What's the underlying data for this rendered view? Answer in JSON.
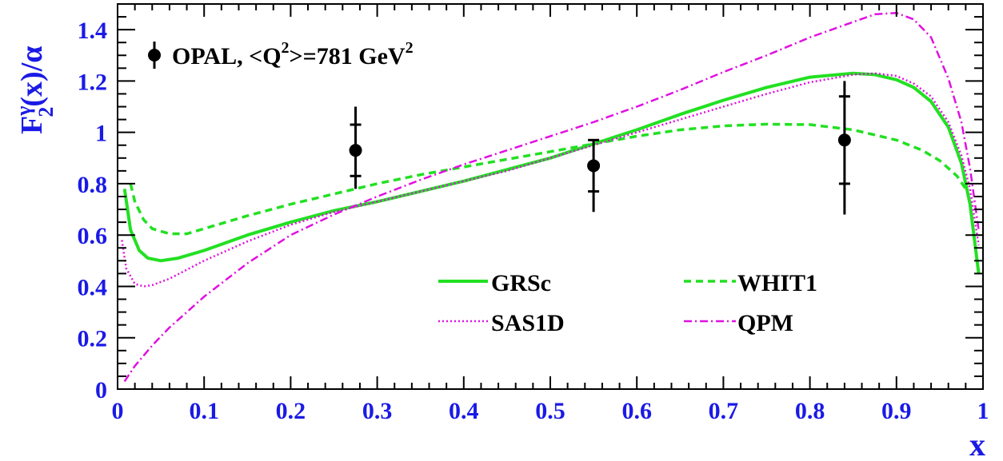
{
  "colors": {
    "axis": "#000000",
    "tick_label": "#1a1ae6",
    "data_points": "#000000",
    "grsc": "#22e022",
    "whit1": "#22e022",
    "sas1d": "#e010e0",
    "qpm": "#e010e0"
  },
  "chart_data": {
    "type": "line",
    "title": "",
    "xlabel": "x",
    "ylabel": "F2γ(x)/α",
    "ylabel_parts": {
      "main": "F",
      "sub": "2",
      "sup": "γ",
      "rest": "(x)/α"
    },
    "xlim": [
      0,
      1
    ],
    "ylim": [
      0,
      1.5
    ],
    "grid": false,
    "legend_placement": "bottom-right",
    "x_ticks": [
      0,
      0.1,
      0.2,
      0.3,
      0.4,
      0.5,
      0.6,
      0.7,
      0.8,
      0.9,
      1
    ],
    "x_tick_labels": [
      "0",
      "0.1",
      "0.2",
      "0.3",
      "0.4",
      "0.5",
      "0.6",
      "0.7",
      "0.8",
      "0.9",
      "1"
    ],
    "y_ticks": [
      0,
      0.2,
      0.4,
      0.6,
      0.8,
      1,
      1.2,
      1.4
    ],
    "y_tick_labels": [
      "0",
      "0.2",
      "0.4",
      "0.6",
      "0.8",
      "1",
      "1.2",
      "1.4"
    ],
    "data_series": {
      "label_prefix": "OPAL, <Q",
      "label_sup": "2",
      "label_mid": ">=781 GeV",
      "label_sup2": "2",
      "points": [
        {
          "x": 0.275,
          "y": 0.93,
          "stat_lo": 0.83,
          "stat_hi": 1.03,
          "tot_lo": 0.78,
          "tot_hi": 1.1
        },
        {
          "x": 0.55,
          "y": 0.87,
          "stat_lo": 0.77,
          "stat_hi": 0.97,
          "tot_lo": 0.69,
          "tot_hi": 0.97
        },
        {
          "x": 0.84,
          "y": 0.97,
          "stat_lo": 0.8,
          "stat_hi": 1.14,
          "tot_lo": 0.68,
          "tot_hi": 1.2
        }
      ]
    },
    "series": [
      {
        "name": "GRSc",
        "style": "solid",
        "x": [
          0.008,
          0.015,
          0.025,
          0.035,
          0.05,
          0.07,
          0.1,
          0.15,
          0.2,
          0.25,
          0.3,
          0.35,
          0.4,
          0.45,
          0.5,
          0.55,
          0.6,
          0.65,
          0.7,
          0.75,
          0.8,
          0.85,
          0.875,
          0.9,
          0.92,
          0.94,
          0.96,
          0.975,
          0.985,
          0.995
        ],
        "y": [
          0.78,
          0.62,
          0.54,
          0.51,
          0.5,
          0.51,
          0.54,
          0.6,
          0.65,
          0.695,
          0.73,
          0.77,
          0.81,
          0.855,
          0.9,
          0.955,
          1.01,
          1.07,
          1.125,
          1.175,
          1.215,
          1.23,
          1.225,
          1.205,
          1.175,
          1.12,
          1.02,
          0.88,
          0.72,
          0.45
        ]
      },
      {
        "name": "WHIT1",
        "style": "dashed",
        "x": [
          0.015,
          0.02,
          0.03,
          0.04,
          0.06,
          0.08,
          0.1,
          0.15,
          0.2,
          0.25,
          0.3,
          0.35,
          0.4,
          0.45,
          0.5,
          0.55,
          0.6,
          0.65,
          0.7,
          0.75,
          0.8,
          0.85,
          0.9,
          0.93,
          0.95,
          0.97,
          0.98
        ],
        "y": [
          0.8,
          0.73,
          0.66,
          0.625,
          0.605,
          0.605,
          0.625,
          0.675,
          0.72,
          0.76,
          0.8,
          0.835,
          0.865,
          0.895,
          0.925,
          0.955,
          0.985,
          1.01,
          1.025,
          1.032,
          1.03,
          1.01,
          0.97,
          0.93,
          0.89,
          0.83,
          0.78
        ]
      },
      {
        "name": "SAS1D",
        "style": "dotted",
        "x": [
          0.005,
          0.01,
          0.02,
          0.03,
          0.04,
          0.06,
          0.08,
          0.1,
          0.15,
          0.2,
          0.25,
          0.3,
          0.35,
          0.4,
          0.45,
          0.5,
          0.55,
          0.6,
          0.65,
          0.7,
          0.75,
          0.8,
          0.85,
          0.875,
          0.9,
          0.92,
          0.94,
          0.96,
          0.975,
          0.985,
          0.995
        ],
        "y": [
          0.58,
          0.47,
          0.41,
          0.4,
          0.405,
          0.43,
          0.465,
          0.5,
          0.575,
          0.64,
          0.69,
          0.73,
          0.77,
          0.81,
          0.85,
          0.9,
          0.95,
          1.0,
          1.05,
          1.1,
          1.15,
          1.195,
          1.225,
          1.23,
          1.22,
          1.19,
          1.14,
          1.04,
          0.91,
          0.78,
          0.56
        ]
      },
      {
        "name": "QPM",
        "style": "dashdot",
        "x": [
          0.008,
          0.02,
          0.04,
          0.06,
          0.08,
          0.1,
          0.15,
          0.2,
          0.25,
          0.3,
          0.35,
          0.4,
          0.45,
          0.5,
          0.55,
          0.6,
          0.65,
          0.7,
          0.75,
          0.8,
          0.85,
          0.875,
          0.9,
          0.92,
          0.94,
          0.96,
          0.975,
          0.985,
          0.995
        ],
        "y": [
          0.03,
          0.09,
          0.17,
          0.24,
          0.3,
          0.36,
          0.49,
          0.6,
          0.68,
          0.75,
          0.815,
          0.875,
          0.93,
          0.985,
          1.04,
          1.1,
          1.165,
          1.235,
          1.3,
          1.37,
          1.43,
          1.46,
          1.465,
          1.44,
          1.37,
          1.21,
          1.04,
          0.86,
          0.62
        ]
      }
    ]
  }
}
